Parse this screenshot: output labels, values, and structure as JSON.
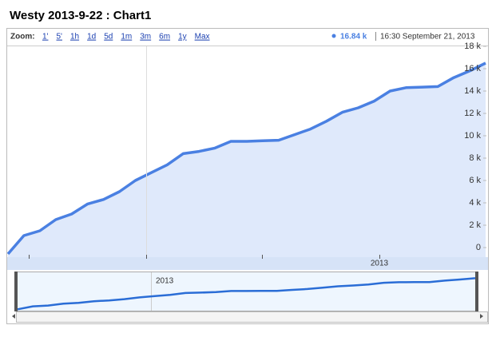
{
  "chart_data": {
    "type": "area",
    "title": "Westy 2013-9-22 : Chart1",
    "zoom_label": "Zoom:",
    "zoom_options": [
      "1'",
      "5'",
      "1h",
      "1d",
      "5d",
      "1m",
      "3m",
      "6m",
      "1y",
      "Max"
    ],
    "current_value": "16.84 k",
    "current_time": "16:30 September 21, 2013",
    "x_label": "2013",
    "color": "#4a80e2",
    "fill": "#dfe9fb",
    "categories": [
      null,
      null,
      null,
      null,
      null,
      null,
      null,
      null,
      null,
      null,
      null,
      null,
      null,
      null,
      null,
      null,
      null,
      null,
      null,
      null,
      null,
      null,
      null,
      null,
      null,
      null,
      null,
      null,
      null,
      null,
      null
    ],
    "values": [
      -570,
      1070,
      1500,
      2500,
      3000,
      3900,
      4300,
      5000,
      6000,
      6700,
      7400,
      8400,
      8600,
      8900,
      9500,
      9500,
      9550,
      9600,
      10100,
      10600,
      11300,
      12100,
      12500,
      13100,
      14000,
      14300,
      14350,
      14400,
      15200,
      15800,
      16500
    ],
    "ylim": [
      -857,
      18000
    ],
    "yticks": [
      {
        "value": 0,
        "label": "0"
      },
      {
        "value": 2000,
        "label": "2 k"
      },
      {
        "value": 4000,
        "label": "4 k"
      },
      {
        "value": 6000,
        "label": "6 k"
      },
      {
        "value": 8000,
        "label": "8 k"
      },
      {
        "value": 10000,
        "label": "10 k"
      },
      {
        "value": 12000,
        "label": "12 k"
      },
      {
        "value": 14000,
        "label": "14 k"
      },
      {
        "value": 16000,
        "label": "16 k"
      },
      {
        "value": 18000,
        "label": "18 k"
      }
    ]
  }
}
